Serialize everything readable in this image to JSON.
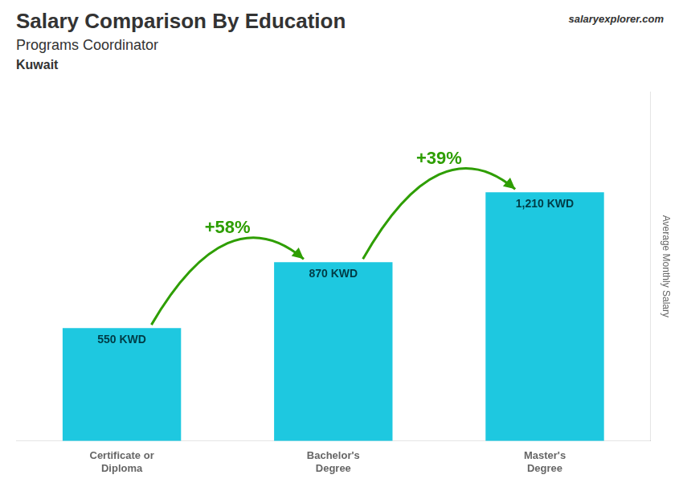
{
  "chart_data": {
    "type": "bar",
    "title": "Salary Comparison By Education",
    "subtitle": "Programs Coordinator",
    "annotations": [
      "Kuwait",
      "salaryexplorer.com"
    ],
    "change_labels": [
      "+58%",
      "+39%"
    ],
    "y_label": "Average Monthly Salary",
    "categories": [
      "Certificate or\nDiploma",
      "Bachelor's\nDegree",
      "Master's\nDegree"
    ],
    "values": [
      550,
      870,
      1210
    ],
    "value_labels": [
      "550 KWD",
      "870 KWD",
      "1,210 KWD"
    ],
    "data_labels": true,
    "color": "#1ec8e0",
    "ylim": [
      0,
      1700
    ],
    "tick_labels": "x",
    "grid": false
  }
}
